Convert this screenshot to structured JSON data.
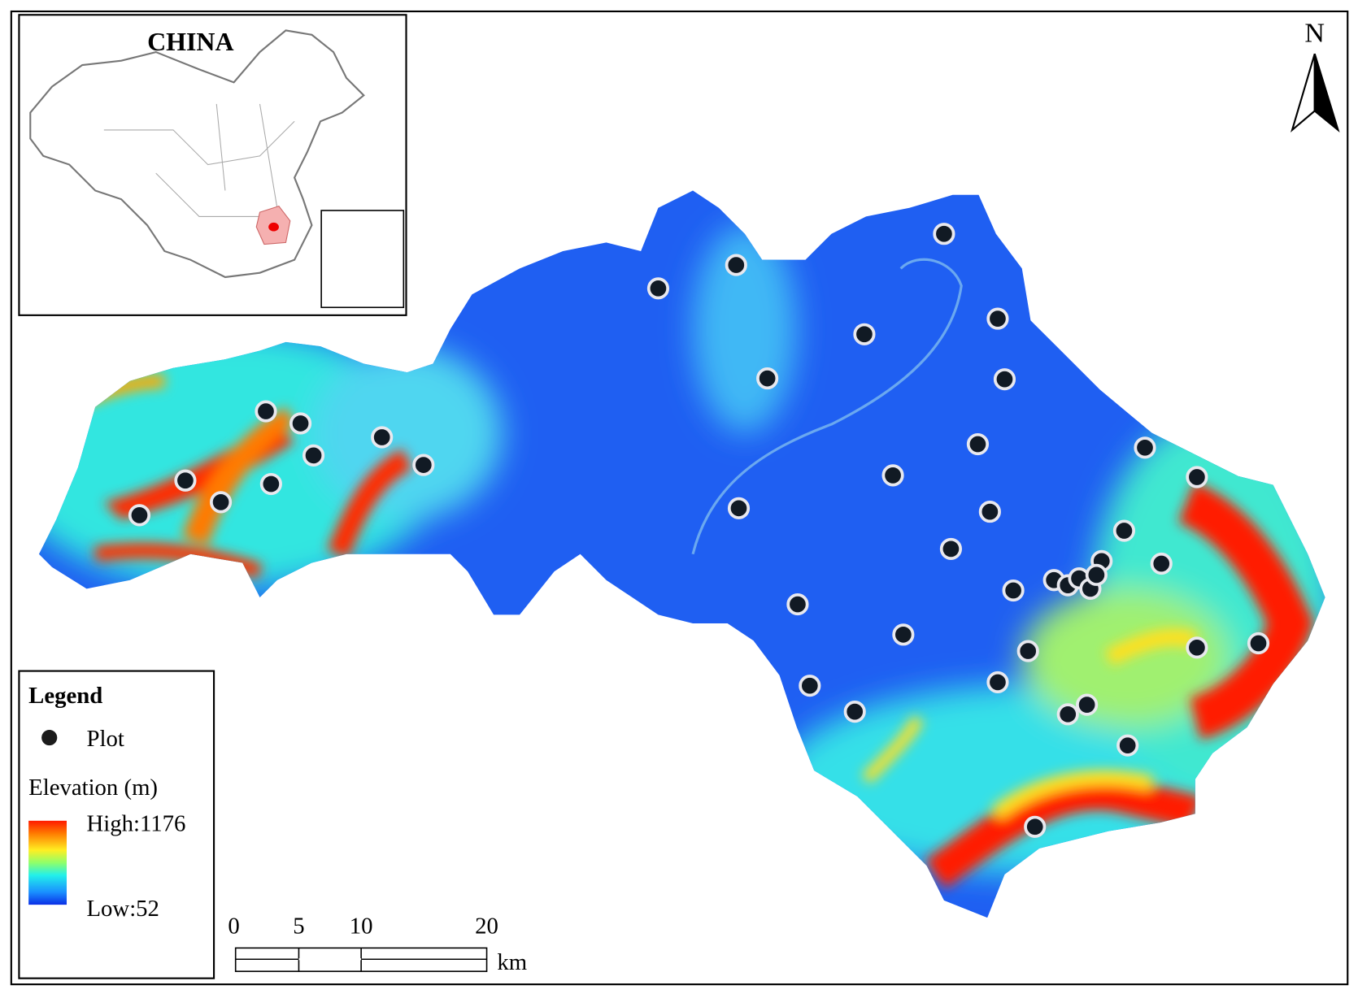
{
  "inset": {
    "title": "CHINA"
  },
  "north_arrow": {
    "label": "N"
  },
  "legend": {
    "title": "Legend",
    "items": [
      {
        "label": "Plot"
      }
    ],
    "elevation": {
      "title": "Elevation (m)",
      "high": "High:1176",
      "low": "Low:52"
    }
  },
  "scale_bar": {
    "labels": [
      "0",
      "5",
      "10",
      "20"
    ],
    "unit": "km"
  }
}
